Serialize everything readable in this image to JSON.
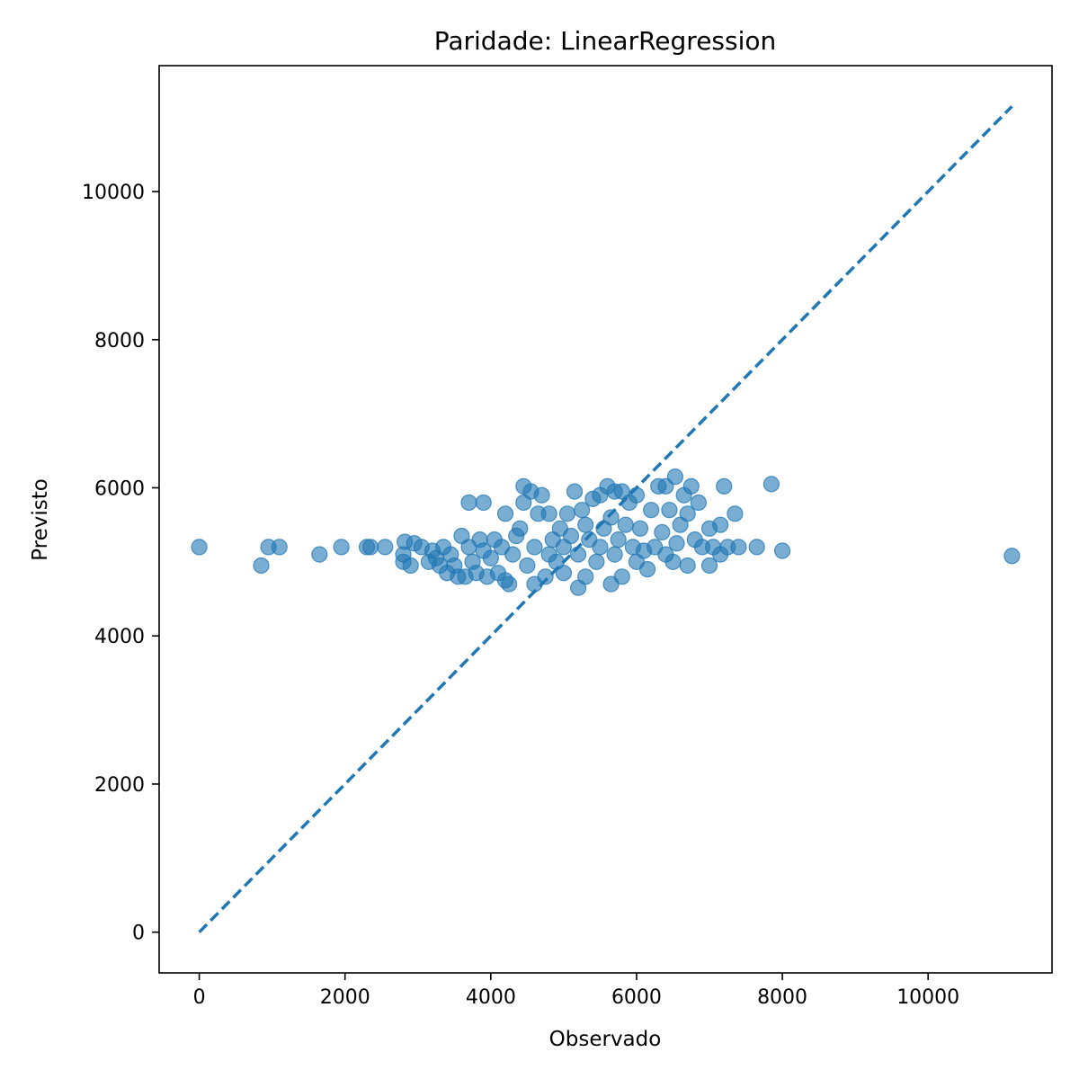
{
  "chart_data": {
    "type": "scatter",
    "title": "Paridade: LinearRegression",
    "xlabel": "Observado",
    "ylabel": "Previsto",
    "xlim": [
      -550,
      11700
    ],
    "ylim": [
      -550,
      11700
    ],
    "xticks": [
      0,
      2000,
      4000,
      6000,
      8000,
      10000
    ],
    "yticks": [
      0,
      2000,
      4000,
      6000,
      8000,
      10000
    ],
    "grid": false,
    "marker_color": "#1f77b4",
    "marker_alpha": 0.6,
    "reference_line": {
      "style": "dashed",
      "color": "#1f77b4",
      "from": [
        0,
        0
      ],
      "to": [
        11150,
        11150
      ]
    },
    "series": [
      {
        "points": [
          [
            0,
            5200
          ],
          [
            850,
            4950
          ],
          [
            950,
            5200
          ],
          [
            1100,
            5200
          ],
          [
            1650,
            5100
          ],
          [
            1950,
            5200
          ],
          [
            2300,
            5200
          ],
          [
            2350,
            5200
          ],
          [
            2550,
            5200
          ],
          [
            2800,
            5100
          ],
          [
            2800,
            5000
          ],
          [
            2820,
            5270
          ],
          [
            2900,
            4950
          ],
          [
            2950,
            5250
          ],
          [
            3050,
            5200
          ],
          [
            3150,
            5000
          ],
          [
            3200,
            5150
          ],
          [
            3250,
            5050
          ],
          [
            3300,
            4950
          ],
          [
            3350,
            5200
          ],
          [
            3400,
            4850
          ],
          [
            3450,
            5100
          ],
          [
            3500,
            4950
          ],
          [
            3550,
            4800
          ],
          [
            3600,
            5350
          ],
          [
            3650,
            4800
          ],
          [
            3700,
            5200
          ],
          [
            3700,
            5800
          ],
          [
            3750,
            5000
          ],
          [
            3800,
            4850
          ],
          [
            3850,
            5300
          ],
          [
            3900,
            5800
          ],
          [
            3900,
            5150
          ],
          [
            3950,
            4800
          ],
          [
            4000,
            5050
          ],
          [
            4050,
            5300
          ],
          [
            4100,
            4850
          ],
          [
            4150,
            5200
          ],
          [
            4200,
            5650
          ],
          [
            4200,
            4750
          ],
          [
            4250,
            4700
          ],
          [
            4300,
            5100
          ],
          [
            4350,
            5350
          ],
          [
            4400,
            5450
          ],
          [
            4450,
            5800
          ],
          [
            4450,
            6020
          ],
          [
            4500,
            4950
          ],
          [
            4550,
            5950
          ],
          [
            4600,
            5200
          ],
          [
            4600,
            4700
          ],
          [
            4650,
            5650
          ],
          [
            4700,
            5900
          ],
          [
            4750,
            4800
          ],
          [
            4800,
            5650
          ],
          [
            4800,
            5100
          ],
          [
            4850,
            5300
          ],
          [
            4900,
            5000
          ],
          [
            4950,
            5450
          ],
          [
            5000,
            5200
          ],
          [
            5000,
            4850
          ],
          [
            5050,
            5650
          ],
          [
            5100,
            5350
          ],
          [
            5150,
            5950
          ],
          [
            5200,
            5100
          ],
          [
            5200,
            4650
          ],
          [
            5250,
            5700
          ],
          [
            5300,
            5500
          ],
          [
            5300,
            4800
          ],
          [
            5350,
            5300
          ],
          [
            5400,
            5850
          ],
          [
            5450,
            5000
          ],
          [
            5500,
            5900
          ],
          [
            5500,
            5200
          ],
          [
            5550,
            5450
          ],
          [
            5600,
            6020
          ],
          [
            5650,
            4700
          ],
          [
            5650,
            5600
          ],
          [
            5700,
            5950
          ],
          [
            5700,
            5100
          ],
          [
            5750,
            5300
          ],
          [
            5800,
            5950
          ],
          [
            5800,
            4800
          ],
          [
            5850,
            5500
          ],
          [
            5900,
            5800
          ],
          [
            5950,
            5200
          ],
          [
            6000,
            5900
          ],
          [
            6000,
            5000
          ],
          [
            6050,
            5450
          ],
          [
            6100,
            5150
          ],
          [
            6150,
            4900
          ],
          [
            6200,
            5700
          ],
          [
            6250,
            5200
          ],
          [
            6300,
            6020
          ],
          [
            6350,
            5400
          ],
          [
            6400,
            6020
          ],
          [
            6400,
            5100
          ],
          [
            6450,
            5700
          ],
          [
            6500,
            5000
          ],
          [
            6530,
            6150
          ],
          [
            6550,
            5250
          ],
          [
            6600,
            5500
          ],
          [
            6650,
            5900
          ],
          [
            6700,
            4950
          ],
          [
            6700,
            5650
          ],
          [
            6750,
            6020
          ],
          [
            6800,
            5300
          ],
          [
            6850,
            5800
          ],
          [
            6900,
            5200
          ],
          [
            7000,
            4950
          ],
          [
            7000,
            5450
          ],
          [
            7050,
            5200
          ],
          [
            7150,
            5100
          ],
          [
            7150,
            5500
          ],
          [
            7200,
            6020
          ],
          [
            7250,
            5200
          ],
          [
            7350,
            5650
          ],
          [
            7400,
            5200
          ],
          [
            7650,
            5200
          ],
          [
            7850,
            6050
          ],
          [
            8000,
            5150
          ],
          [
            11150,
            5080
          ]
        ]
      }
    ]
  }
}
